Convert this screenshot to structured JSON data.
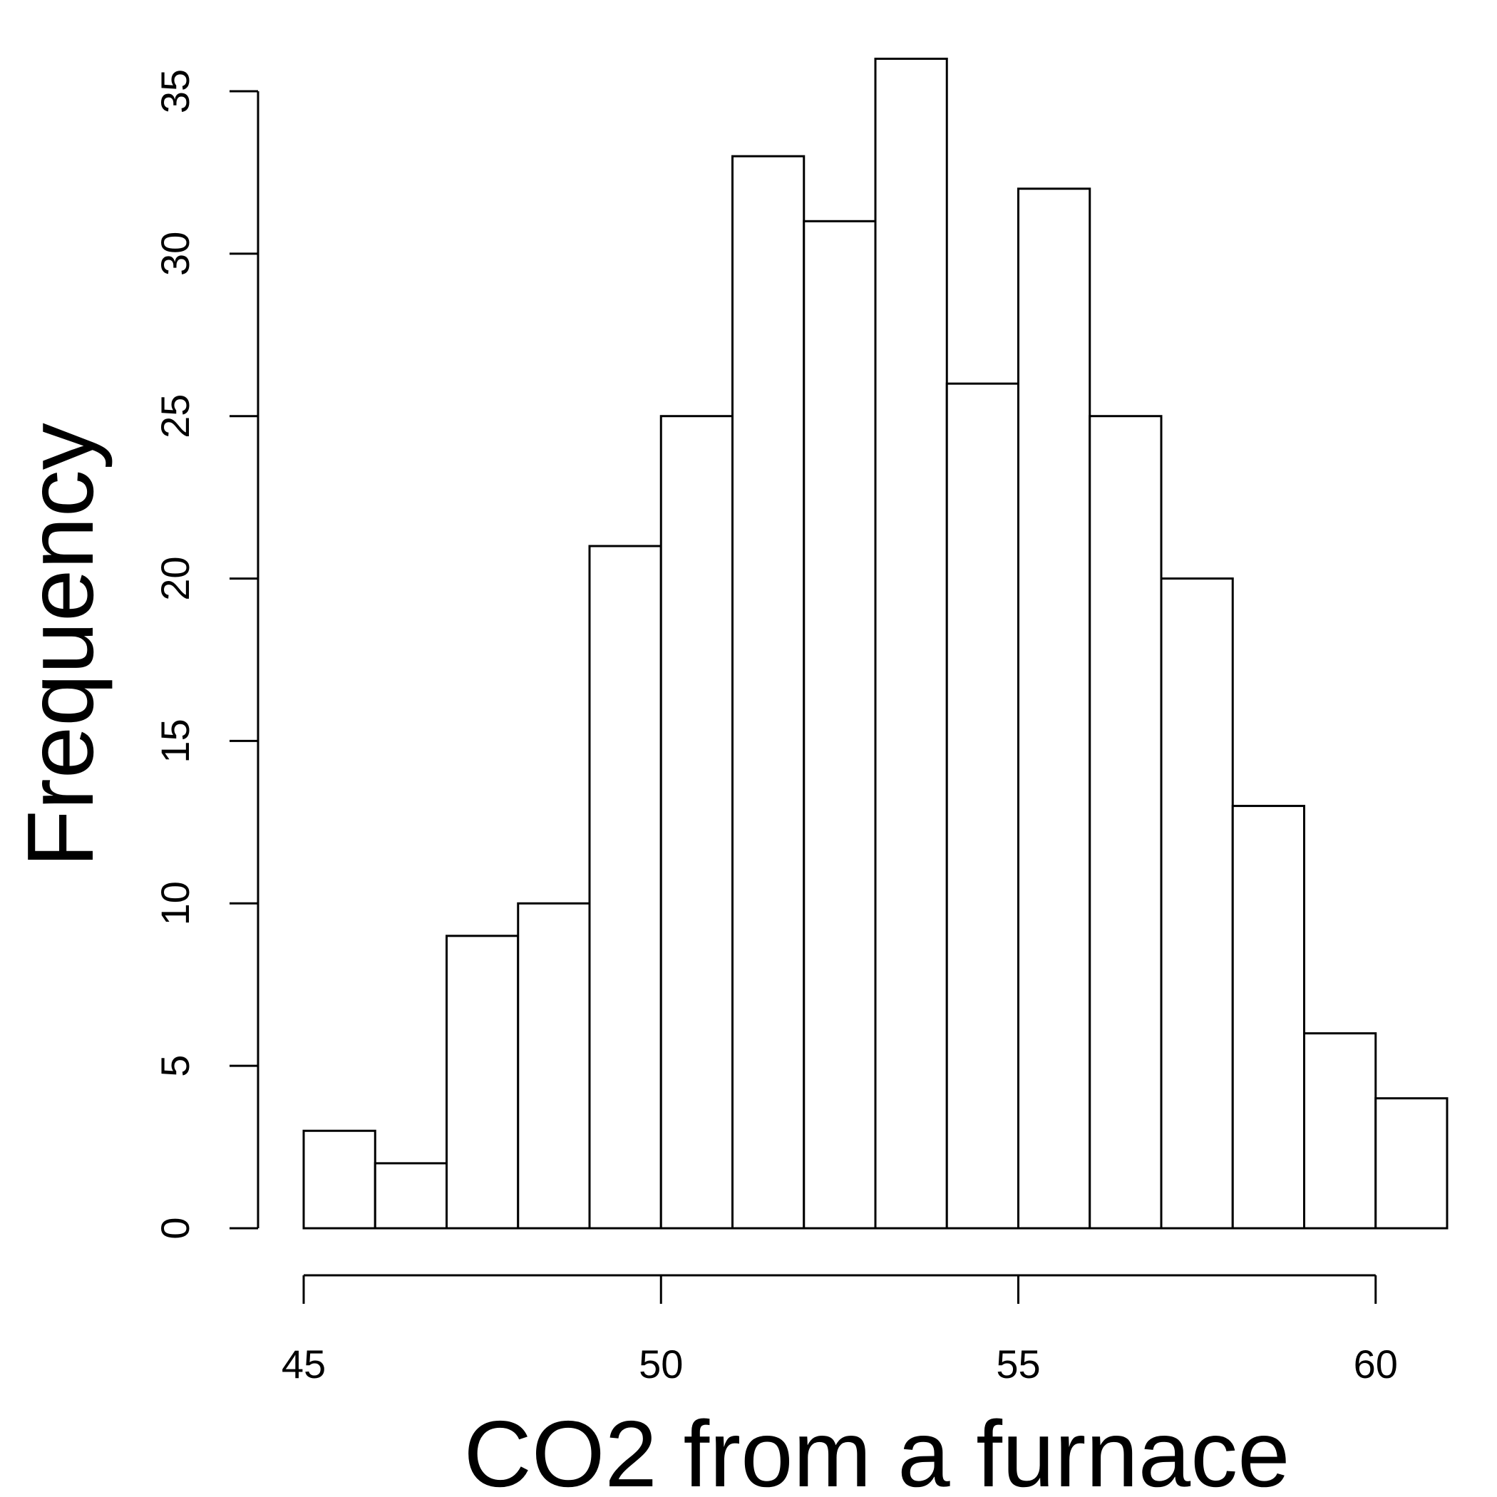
{
  "chart_data": {
    "type": "bar",
    "subtype": "histogram",
    "title": "",
    "xlabel": "CO2 from a furnace",
    "ylabel": "Frequency",
    "bin_edges": [
      45,
      46,
      47,
      48,
      49,
      50,
      51,
      52,
      53,
      54,
      55,
      56,
      57,
      58,
      59,
      60,
      61
    ],
    "values": [
      3,
      2,
      9,
      10,
      21,
      25,
      33,
      31,
      36,
      26,
      32,
      25,
      20,
      13,
      6,
      4
    ],
    "xlim": [
      45,
      61
    ],
    "ylim": [
      0,
      35
    ],
    "x_ticks": [
      45,
      50,
      55,
      60
    ],
    "y_ticks": [
      0,
      5,
      10,
      15,
      20,
      25,
      30,
      35
    ],
    "grid": false,
    "colors": {
      "bar_fill": "#ffffff",
      "bar_stroke": "#000000"
    }
  }
}
